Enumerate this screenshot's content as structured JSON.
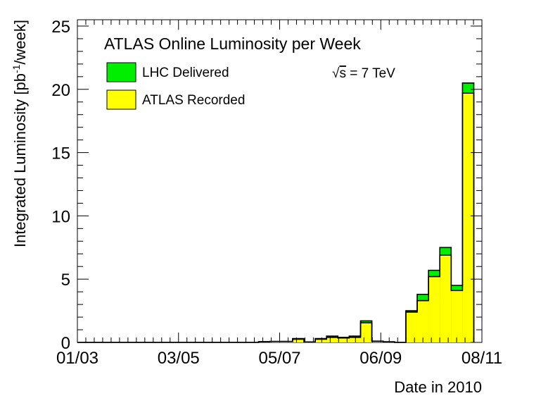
{
  "chart_data": {
    "type": "bar",
    "title": "ATLAS Online Luminosity per Week",
    "annotation": "√s = 7 TeV",
    "annotation_parts": {
      "root": "√",
      "var": "s",
      "rest": " = 7 TeV"
    },
    "xlabel": "Date in 2010",
    "ylabel": "Integrated Luminosity [pb⁻¹/week]",
    "ylabel_parts": {
      "pre": "Integrated Luminosity [pb",
      "sup": "-1",
      "post": "/week]"
    },
    "x_tick_labels": [
      "01/03",
      "03/05",
      "05/07",
      "06/09",
      "08/11"
    ],
    "y_tick_labels": [
      "0",
      "5",
      "10",
      "15",
      "20",
      "25"
    ],
    "ylim": [
      0,
      25.5
    ],
    "y_ticks": [
      0,
      5,
      10,
      15,
      20,
      25
    ],
    "legend_position": "top-left",
    "grid": false,
    "colors": {
      "delivered": "#00ee00",
      "recorded": "#ffff00"
    },
    "x_unit": "week index (weekly bins, first bin starts 01/03)",
    "series": [
      {
        "name": "LHC Delivered",
        "values": [
          0,
          0,
          0,
          0,
          0,
          0,
          0,
          0,
          0,
          0,
          0,
          0,
          0,
          0,
          0,
          0,
          0.06,
          0.08,
          0.08,
          0.3,
          0.04,
          0.3,
          0.5,
          0.4,
          0.5,
          1.7,
          0.1,
          0.05,
          0,
          2.5,
          3.8,
          5.7,
          7.5,
          4.5,
          20.5
        ]
      },
      {
        "name": "ATLAS Recorded",
        "values": [
          0,
          0,
          0,
          0,
          0,
          0,
          0,
          0,
          0,
          0,
          0,
          0,
          0,
          0,
          0,
          0,
          0.05,
          0.07,
          0.07,
          0.25,
          0.03,
          0.25,
          0.4,
          0.35,
          0.4,
          1.55,
          0.08,
          0.04,
          0,
          2.4,
          3.3,
          5.2,
          6.9,
          4.1,
          19.7
        ]
      }
    ]
  }
}
